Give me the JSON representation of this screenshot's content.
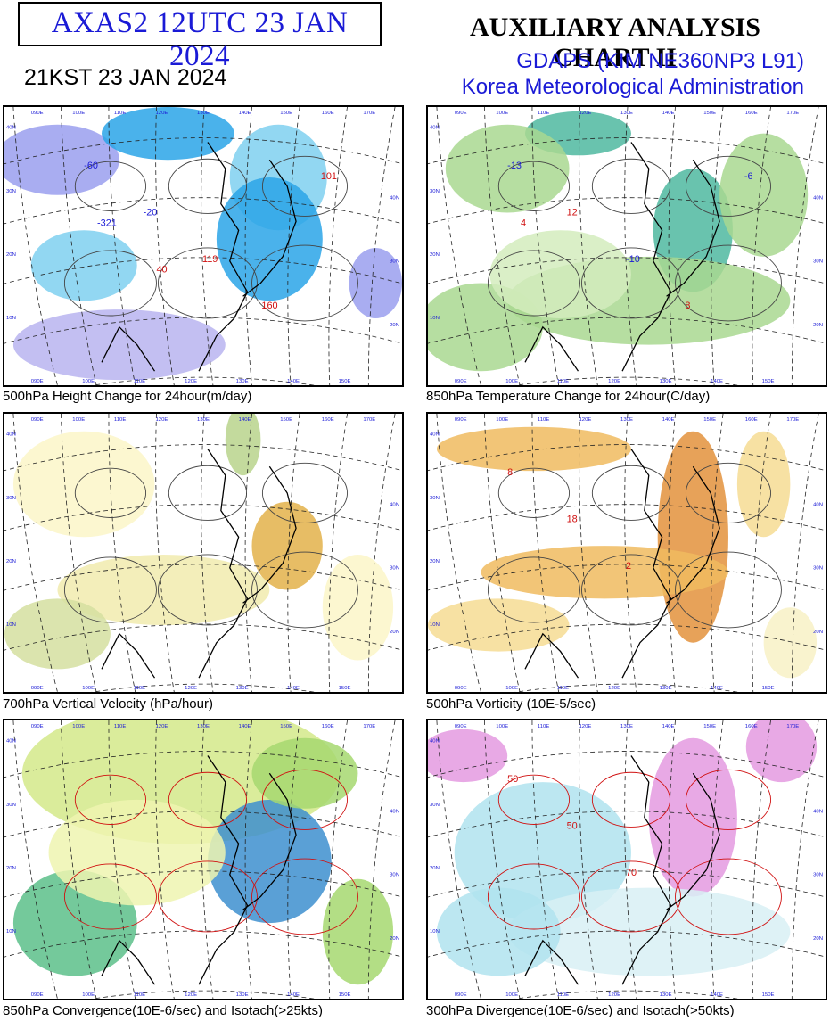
{
  "header": {
    "code_title": "AXAS2  12UTC 23 JAN 2024",
    "chart_title": "AUXILIARY ANALYSIS CHART II",
    "local_time": "21KST 23 JAN 2024",
    "model": "GDAPS (KIM NE360NP3 L91)",
    "agency": "Korea Meteorological Administration"
  },
  "panels": [
    {
      "id": "p1",
      "caption": "500hPa Height Change for 24hour(m/day)",
      "palette": "blue",
      "center_labels": [
        "-60",
        "-20",
        "119",
        "160",
        "101",
        "-321",
        "40"
      ]
    },
    {
      "id": "p2",
      "caption": "850hPa Temperature Change for 24hour(C/day)",
      "palette": "green",
      "center_labels": [
        "-13",
        "12",
        "-10",
        "8",
        "-6",
        "4"
      ]
    },
    {
      "id": "p3",
      "caption": "700hPa Vertical Velocity (hPa/hour)",
      "palette": "yellow",
      "center_labels": []
    },
    {
      "id": "p4",
      "caption": "500hPa Vorticity (10E-5/sec)",
      "palette": "orange",
      "center_labels": [
        "8",
        "18",
        "2"
      ]
    },
    {
      "id": "p5",
      "caption": "850hPa Convergence(10E-6/sec) and Isotach(>25kts)",
      "palette": "greenred",
      "center_labels": []
    },
    {
      "id": "p6",
      "caption": "300hPa Divergence(10E-6/sec) and Isotach(>50kts)",
      "palette": "cyanred",
      "center_labels": [
        "50",
        "50",
        "70"
      ]
    }
  ],
  "map": {
    "lon_labels_top": [
      "090E",
      "100E",
      "110E",
      "120E",
      "130E",
      "140E",
      "150E",
      "160E",
      "170E"
    ],
    "lon_labels_bottom": [
      "090E",
      "100E",
      "110E",
      "120E",
      "130E",
      "140E",
      "150E"
    ],
    "lat_labels_left": [
      "40N",
      "30N",
      "20N",
      "10N"
    ],
    "lat_labels_right": [
      "40N",
      "30N",
      "20N",
      "10N"
    ]
  }
}
